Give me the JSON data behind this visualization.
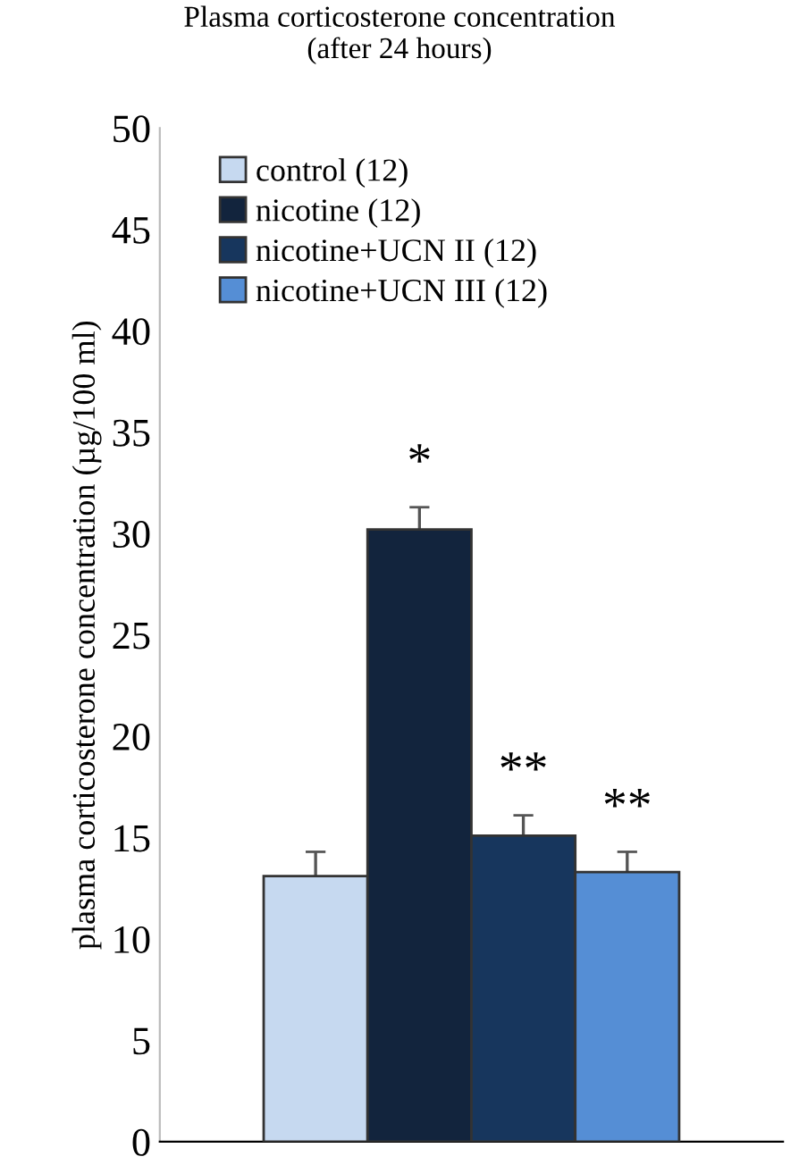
{
  "chart_data": {
    "type": "bar",
    "title": "Plasma corticosterone concentration\n(after 24 hours)",
    "ylabel": "plasma corticosterone concentration (µg/100 ml)",
    "categories": [
      null
    ],
    "series": [
      {
        "name": "control (12)",
        "color": "#c6d9f0",
        "values": [
          13.1
        ],
        "errors": [
          1.2
        ],
        "value_labels": [
          null
        ]
      },
      {
        "name": "nicotine (12)",
        "color": "#12243d",
        "values": [
          30.2
        ],
        "errors": [
          1.1
        ],
        "value_labels": [
          "*"
        ]
      },
      {
        "name": "nicotine+UCN II (12)",
        "color": "#17365d",
        "values": [
          15.1
        ],
        "errors": [
          1.0
        ],
        "value_labels": [
          "**"
        ]
      },
      {
        "name": "nicotine+UCN III (12)",
        "color": "#558ed5",
        "values": [
          13.3
        ],
        "errors": [
          1.0
        ],
        "value_labels": [
          "**"
        ]
      }
    ],
    "ylim": [
      0,
      50
    ],
    "yticks": [
      0,
      5,
      10,
      15,
      20,
      25,
      30,
      35,
      40,
      45,
      50
    ],
    "grid": false,
    "legend": "top left"
  }
}
